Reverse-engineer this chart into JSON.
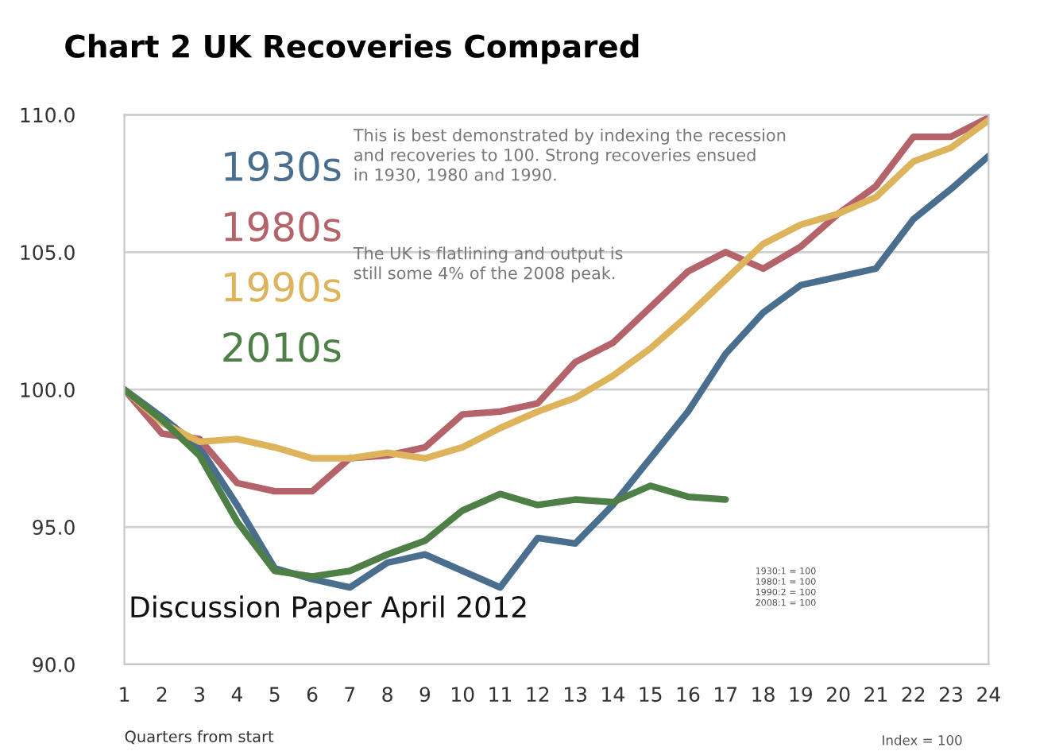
{
  "chart_data": {
    "type": "line",
    "title": "Chart 2 UK Recoveries Compared",
    "xlabel": "Quarters from start",
    "x": [
      1,
      2,
      3,
      4,
      5,
      6,
      7,
      8,
      9,
      10,
      11,
      12,
      13,
      14,
      15,
      16,
      17,
      18,
      19,
      20,
      21,
      22,
      23,
      24
    ],
    "xlim": [
      1,
      24
    ],
    "xticks": [
      1,
      2,
      3,
      4,
      5,
      6,
      7,
      8,
      9,
      10,
      11,
      12,
      13,
      14,
      15,
      16,
      17,
      18,
      19,
      20,
      21,
      22,
      23,
      24
    ],
    "ylim": [
      90,
      110
    ],
    "yticks": [
      {
        "value": 90,
        "label": "90.0"
      },
      {
        "value": 95,
        "label": "95.0"
      },
      {
        "value": 100,
        "label": "100.0"
      },
      {
        "value": 105,
        "label": "105.0"
      },
      {
        "value": 110,
        "label": "110.0"
      }
    ],
    "grid": "y",
    "legend": "top left",
    "line_style": "solid",
    "marker": "none",
    "series": [
      {
        "name": "1930s",
        "color": "#4a6f8e",
        "values": [
          100,
          99.0,
          97.9,
          95.8,
          93.5,
          93.1,
          92.8,
          93.7,
          94.0,
          93.4,
          92.8,
          94.6,
          94.4,
          95.8,
          97.5,
          99.2,
          101.3,
          102.8,
          103.8,
          104.1,
          104.4,
          106.2,
          107.3,
          108.5
        ]
      },
      {
        "name": "1980s",
        "color": "#b5636a",
        "values": [
          100,
          98.4,
          98.2,
          96.6,
          96.3,
          96.3,
          97.5,
          97.6,
          97.9,
          99.1,
          99.2,
          99.5,
          101.0,
          101.7,
          103.0,
          104.3,
          105.0,
          104.4,
          105.2,
          106.4,
          107.4,
          109.2,
          109.2,
          109.9
        ]
      },
      {
        "name": "1990s",
        "color": "#ddb35c",
        "values": [
          100,
          98.8,
          98.1,
          98.2,
          97.9,
          97.5,
          97.5,
          97.7,
          97.5,
          97.9,
          98.6,
          99.2,
          99.7,
          100.5,
          101.5,
          102.7,
          104.0,
          105.3,
          106.0,
          106.4,
          107.0,
          108.3,
          108.8,
          109.8
        ]
      },
      {
        "name": "2010s",
        "color": "#4e7f47",
        "values": [
          100,
          98.9,
          97.6,
          95.2,
          93.4,
          93.2,
          93.4,
          94.0,
          94.5,
          95.6,
          96.2,
          95.8,
          96.0,
          95.9,
          96.5,
          96.1,
          96.0,
          null,
          null,
          null,
          null,
          null,
          null,
          null
        ]
      }
    ],
    "annotations": [
      "This is best demonstrated by indexing the recession\nand recoveries to 100. Strong recoveries ensued\nin 1930, 1980 and 1990.",
      "The UK is flatlining and output is\nstill some 4% of the 2008 peak.",
      "Discussion Paper April 2012",
      "1930:1 = 100\n1980:1 = 100\n1990:2 = 100\n2008:1 = 100",
      "Index = 100"
    ]
  }
}
